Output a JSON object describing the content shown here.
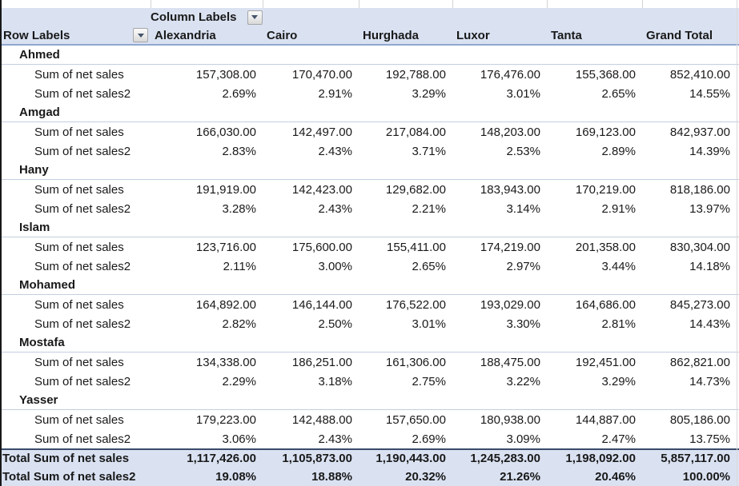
{
  "filters": {
    "column_labels_label": "Column Labels",
    "row_labels_label": "Row Labels"
  },
  "columns": [
    "Alexandria",
    "Cairo",
    "Hurghada",
    "Luxor",
    "Tanta",
    "Grand Total"
  ],
  "row_measures": [
    "Sum of net sales",
    "Sum of net sales2"
  ],
  "groups": [
    {
      "name": "Ahmed",
      "net_sales": [
        "157,308.00",
        "170,470.00",
        "192,788.00",
        "176,476.00",
        "155,368.00",
        "852,410.00"
      ],
      "net_sales2": [
        "2.69%",
        "2.91%",
        "3.29%",
        "3.01%",
        "2.65%",
        "14.55%"
      ]
    },
    {
      "name": "Amgad",
      "net_sales": [
        "166,030.00",
        "142,497.00",
        "217,084.00",
        "148,203.00",
        "169,123.00",
        "842,937.00"
      ],
      "net_sales2": [
        "2.83%",
        "2.43%",
        "3.71%",
        "2.53%",
        "2.89%",
        "14.39%"
      ]
    },
    {
      "name": "Hany",
      "net_sales": [
        "191,919.00",
        "142,423.00",
        "129,682.00",
        "183,943.00",
        "170,219.00",
        "818,186.00"
      ],
      "net_sales2": [
        "3.28%",
        "2.43%",
        "2.21%",
        "3.14%",
        "2.91%",
        "13.97%"
      ]
    },
    {
      "name": "Islam",
      "net_sales": [
        "123,716.00",
        "175,600.00",
        "155,411.00",
        "174,219.00",
        "201,358.00",
        "830,304.00"
      ],
      "net_sales2": [
        "2.11%",
        "3.00%",
        "2.65%",
        "2.97%",
        "3.44%",
        "14.18%"
      ]
    },
    {
      "name": "Mohamed",
      "net_sales": [
        "164,892.00",
        "146,144.00",
        "176,522.00",
        "193,029.00",
        "164,686.00",
        "845,273.00"
      ],
      "net_sales2": [
        "2.82%",
        "2.50%",
        "3.01%",
        "3.30%",
        "2.81%",
        "14.43%"
      ]
    },
    {
      "name": "Mostafa",
      "net_sales": [
        "134,338.00",
        "186,251.00",
        "161,306.00",
        "188,475.00",
        "192,451.00",
        "862,821.00"
      ],
      "net_sales2": [
        "2.29%",
        "3.18%",
        "2.75%",
        "3.22%",
        "3.29%",
        "14.73%"
      ]
    },
    {
      "name": "Yasser",
      "net_sales": [
        "179,223.00",
        "142,488.00",
        "157,650.00",
        "180,938.00",
        "144,887.00",
        "805,186.00"
      ],
      "net_sales2": [
        "3.06%",
        "2.43%",
        "2.69%",
        "3.09%",
        "2.47%",
        "13.75%"
      ]
    }
  ],
  "totals": {
    "net_sales_label": "Total Sum of net sales",
    "net_sales": [
      "1,117,426.00",
      "1,105,873.00",
      "1,190,443.00",
      "1,245,283.00",
      "1,198,092.00",
      "5,857,117.00"
    ],
    "net_sales2_label": "Total Sum of net sales2",
    "net_sales2": [
      "19.08%",
      "18.88%",
      "20.32%",
      "21.26%",
      "20.46%",
      "100.00%"
    ]
  },
  "colors": {
    "header_band": "#dae2f2",
    "header_border": "#8fa8d0",
    "group_border": "#c3cede",
    "totals_border": "#39496b",
    "text": "#191919"
  }
}
